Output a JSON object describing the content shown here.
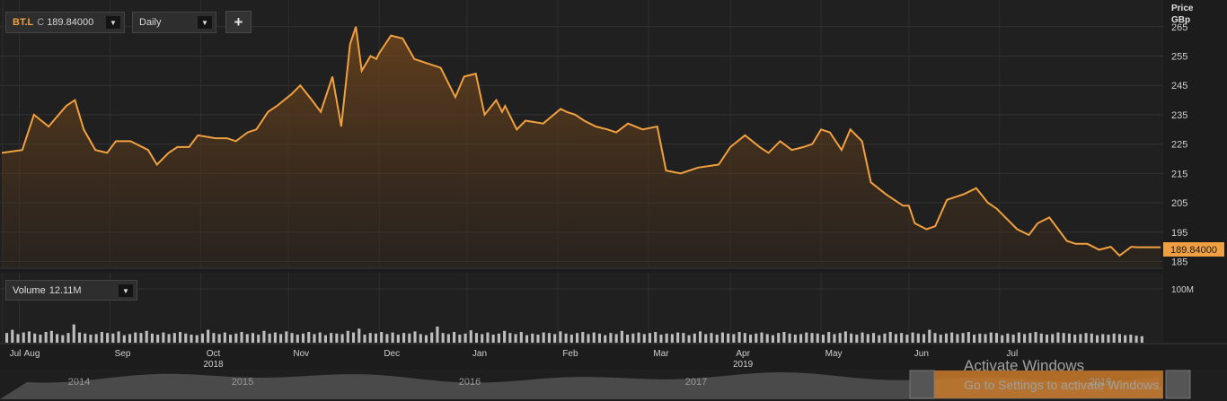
{
  "toolbar": {
    "symbol": "BT.L",
    "close_flag": "C",
    "close_value": "189.84000",
    "dropdown_glyph": "▼",
    "interval": "Daily",
    "add_glyph": "+"
  },
  "price_axis": {
    "header_line1": "Price",
    "header_line2": "GBp",
    "ticks": [
      265,
      255,
      245,
      235,
      225,
      215,
      205,
      195,
      185
    ],
    "last_price_label": "189.84000"
  },
  "volume_panel": {
    "label": "Volume",
    "value": "12.11M",
    "axis_label": "100M"
  },
  "time_axis": {
    "months": [
      "Jul",
      "Aug",
      "Sep",
      "Oct",
      "Nov",
      "Dec",
      "Jan",
      "Feb",
      "Mar",
      "Apr",
      "May",
      "Jun",
      "Jul"
    ],
    "year_labels": [
      {
        "label": "2018",
        "month": "Oct"
      },
      {
        "label": "2019",
        "month": "Apr"
      }
    ]
  },
  "navigator": {
    "years": [
      "2014",
      "2015",
      "2016",
      "2017",
      "2019"
    ]
  },
  "watermark": {
    "title": "Activate Windows",
    "subtitle": "Go to Settings to activate Windows."
  },
  "colors": {
    "line": "#f0a040",
    "background": "#1c1c1c",
    "volume_bar": "#bdbdbd",
    "price_tag": "#f0a040",
    "navigator_window": "#c87a2a"
  },
  "chart_data": {
    "type": "area",
    "title": "",
    "xlabel": "",
    "ylabel": "Price GBp",
    "ylim": [
      183,
      268
    ],
    "x_range": [
      "2018-06-25",
      "2019-07-26"
    ],
    "grid": true,
    "series": [
      {
        "name": "BT.L",
        "x": [
          "2018-06-25",
          "2018-07-02",
          "2018-07-06",
          "2018-07-11",
          "2018-07-17",
          "2018-07-20",
          "2018-07-23",
          "2018-07-27",
          "2018-07-31",
          "2018-08-03",
          "2018-08-08",
          "2018-08-14",
          "2018-08-17",
          "2018-08-21",
          "2018-08-24",
          "2018-08-28",
          "2018-08-31",
          "2018-09-06",
          "2018-09-10",
          "2018-09-13",
          "2018-09-17",
          "2018-09-20",
          "2018-09-24",
          "2018-09-27",
          "2018-10-02",
          "2018-10-05",
          "2018-10-09",
          "2018-10-12",
          "2018-10-16",
          "2018-10-19",
          "2018-10-22",
          "2018-10-24",
          "2018-10-26",
          "2018-10-29",
          "2018-10-31",
          "2018-11-01",
          "2018-11-05",
          "2018-11-09",
          "2018-11-13",
          "2018-11-19",
          "2018-11-22",
          "2018-11-27",
          "2018-11-30",
          "2018-12-04",
          "2018-12-07",
          "2018-12-11",
          "2018-12-13",
          "2018-12-14",
          "2018-12-18",
          "2018-12-21",
          "2018-12-27",
          "2019-01-02",
          "2019-01-04",
          "2019-01-07",
          "2019-01-10",
          "2019-01-14",
          "2019-01-18",
          "2019-01-21",
          "2019-01-25",
          "2019-01-30",
          "2019-02-04",
          "2019-02-07",
          "2019-02-12",
          "2019-02-18",
          "2019-02-25",
          "2019-03-01",
          "2019-03-06",
          "2019-03-11",
          "2019-03-14",
          "2019-03-18",
          "2019-03-22",
          "2019-03-26",
          "2019-03-29",
          "2019-04-01",
          "2019-04-04",
          "2019-04-08",
          "2019-04-11",
          "2019-04-15",
          "2019-04-18",
          "2019-04-23",
          "2019-04-26",
          "2019-04-29",
          "2019-05-01",
          "2019-05-03",
          "2019-05-07",
          "2019-05-10",
          "2019-05-14",
          "2019-05-20",
          "2019-05-24",
          "2019-05-28",
          "2019-05-31",
          "2019-06-03",
          "2019-06-07",
          "2019-06-11",
          "2019-06-14",
          "2019-06-18",
          "2019-06-21",
          "2019-06-24",
          "2019-06-27",
          "2019-07-01",
          "2019-07-05",
          "2019-07-09",
          "2019-07-12",
          "2019-07-16",
          "2019-07-18",
          "2019-07-19",
          "2019-07-22",
          "2019-07-26"
        ],
        "values": [
          222,
          223,
          235,
          231,
          238,
          240,
          230,
          223,
          222,
          226,
          226,
          223,
          218,
          222,
          224,
          224,
          228,
          227,
          227,
          226,
          229,
          230,
          236,
          238,
          242,
          245,
          240,
          236,
          248,
          231,
          259,
          265,
          250,
          255,
          254,
          256,
          262,
          261,
          254,
          252,
          251,
          241,
          248,
          249,
          235,
          240,
          236,
          238,
          230,
          233,
          232,
          237,
          236,
          235,
          233,
          231,
          230,
          229,
          232,
          230,
          231,
          216,
          215,
          217,
          218,
          224,
          228,
          224,
          222,
          226,
          223,
          224,
          225,
          230,
          229,
          223,
          230,
          226,
          212,
          208,
          206,
          204,
          204,
          198,
          196,
          197,
          206,
          208,
          210,
          205,
          203,
          200,
          196,
          194,
          198,
          200,
          196,
          192,
          191,
          191,
          189,
          190,
          187,
          190,
          189.84,
          189.84,
          189.84,
          189.84
        ]
      }
    ],
    "volume": {
      "unit": "M",
      "axis_ticks": [
        100
      ],
      "values": [
        18,
        24,
        16,
        19,
        21,
        17,
        15,
        20,
        22,
        16,
        14,
        18,
        34,
        19,
        17,
        15,
        16,
        20,
        18,
        17,
        21,
        14,
        16,
        19,
        18,
        22,
        17,
        15,
        19,
        16,
        18,
        20,
        17,
        15,
        14,
        17,
        24,
        18,
        16,
        19,
        15,
        17,
        20,
        16,
        18,
        15,
        22,
        17,
        19,
        16,
        21,
        18,
        15,
        17,
        20,
        16,
        19,
        14,
        18,
        17,
        16,
        22,
        19,
        26,
        15,
        18,
        17,
        20,
        16,
        19,
        15,
        18,
        17,
        21,
        16,
        14,
        19,
        30,
        18,
        16,
        20,
        15,
        17,
        23,
        18,
        16,
        19,
        15,
        17,
        22,
        18,
        16,
        20,
        14,
        17,
        15,
        19,
        18,
        16,
        21,
        17,
        15,
        18,
        20,
        16,
        19,
        17,
        14,
        18,
        16,
        22,
        15,
        17,
        19,
        16,
        18,
        20,
        15,
        17,
        16,
        19,
        18,
        14,
        17,
        21,
        16,
        18,
        15,
        19,
        17,
        16,
        20,
        18,
        15,
        17,
        19,
        16,
        14,
        18,
        20,
        17,
        15,
        16,
        19,
        18,
        17,
        15,
        20,
        16,
        18,
        21,
        17,
        15,
        19,
        16,
        18,
        14,
        17,
        20,
        16,
        18,
        15,
        19,
        17,
        16,
        24,
        18,
        15,
        17,
        19,
        16,
        18,
        20,
        15,
        17,
        16,
        19,
        18,
        14,
        17,
        15,
        19,
        16,
        18,
        20,
        17,
        15,
        16,
        19,
        18,
        17,
        15,
        16,
        18,
        17,
        14,
        16,
        15,
        17,
        16,
        14,
        15,
        13,
        12
      ]
    }
  }
}
